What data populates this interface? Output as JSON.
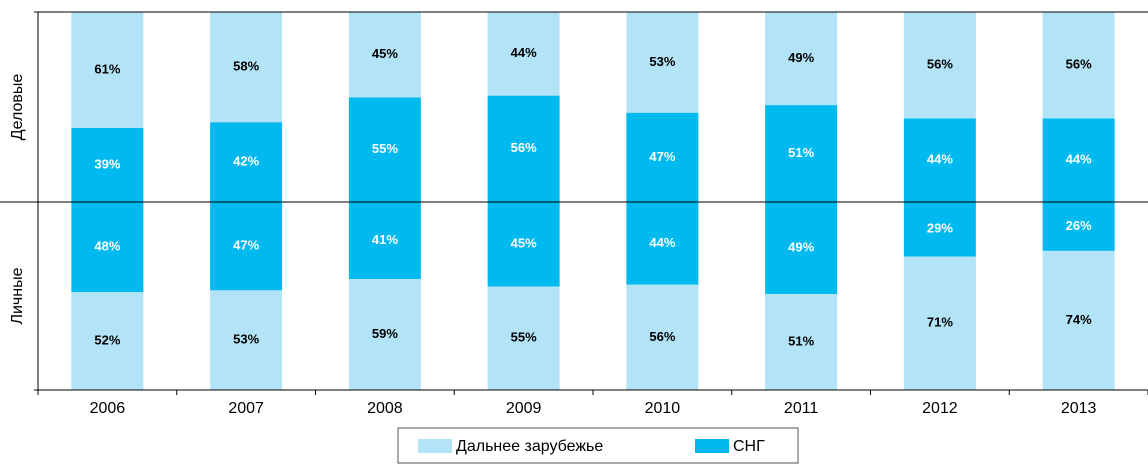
{
  "chart_data": {
    "type": "bar",
    "stacked": true,
    "categories": [
      "2006",
      "2007",
      "2008",
      "2009",
      "2010",
      "2011",
      "2012",
      "2013"
    ],
    "series": [
      {
        "name": "Дальнее зарубежье",
        "color": "#b3e3f7"
      },
      {
        "name": "СНГ",
        "color": "#00b9ef"
      }
    ],
    "ylim": [
      0,
      100
    ],
    "panels": [
      {
        "label": "Деловые",
        "series": [
          {
            "values": [
              61,
              58,
              45,
              44,
              53,
              49,
              56,
              56
            ],
            "value_labels": [
              "61%",
              "58%",
              "45%",
              "44%",
              "53%",
              "49%",
              "56%",
              "56%"
            ]
          },
          {
            "values": [
              39,
              42,
              55,
              56,
              47,
              51,
              44,
              44
            ],
            "value_labels": [
              "39%",
              "42%",
              "55%",
              "56%",
              "47%",
              "51%",
              "44%",
              "44%"
            ]
          }
        ]
      },
      {
        "label": "Личные",
        "series": [
          {
            "values": [
              52,
              53,
              59,
              55,
              56,
              51,
              71,
              74
            ],
            "value_labels": [
              "52%",
              "53%",
              "59%",
              "55%",
              "56%",
              "51%",
              "71%",
              "74%"
            ]
          },
          {
            "values": [
              48,
              47,
              41,
              45,
              44,
              49,
              29,
              26
            ],
            "value_labels": [
              "48%",
              "47%",
              "41%",
              "45%",
              "44%",
              "49%",
              "29%",
              "26%"
            ]
          }
        ]
      }
    ]
  }
}
